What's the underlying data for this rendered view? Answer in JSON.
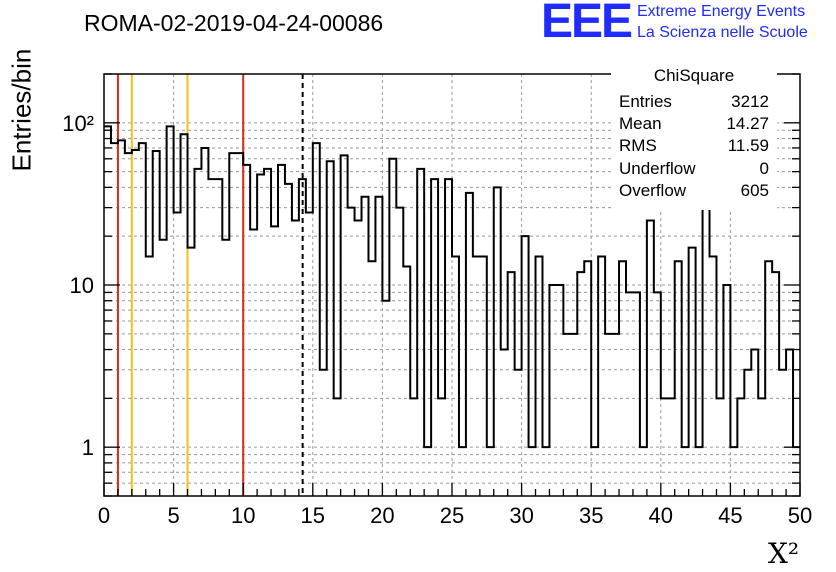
{
  "header": {
    "title": "ROMA-02-2019-04-24-00086",
    "logo_text": "EEE",
    "logo_line1": "Extreme Energy Events",
    "logo_line2": "La Scienza nelle Scuole",
    "logo_color": "#1f2bff"
  },
  "stats": {
    "title": "ChiSquare",
    "rows": [
      {
        "label": "Entries",
        "value": "3212"
      },
      {
        "label": "Mean",
        "value": "14.27"
      },
      {
        "label": "RMS",
        "value": "11.59"
      },
      {
        "label": "Underflow",
        "value": "0"
      },
      {
        "label": "Overflow",
        "value": "605"
      }
    ]
  },
  "chart_data": {
    "type": "bar",
    "style": "step-histogram",
    "xlabel": "X²",
    "ylabel": "Entries/bin",
    "xlim": [
      0,
      50
    ],
    "ylim": [
      0.5,
      200
    ],
    "log_y": true,
    "grid": true,
    "x_ticks": [
      0,
      5,
      10,
      15,
      20,
      25,
      30,
      35,
      40,
      45,
      50
    ],
    "y_ticks": [
      {
        "value": 1,
        "label": "1"
      },
      {
        "value": 10,
        "label": "10"
      },
      {
        "value": 100,
        "label": "10²"
      }
    ],
    "bin_width": 0.5,
    "values": [
      95,
      75,
      78,
      65,
      68,
      75,
      15,
      67,
      19,
      95,
      28,
      85,
      17,
      52,
      70,
      45,
      45,
      19,
      65,
      65,
      55,
      22,
      48,
      52,
      23,
      55,
      42,
      25,
      45,
      28,
      75,
      3,
      58,
      2,
      63,
      30,
      25,
      35,
      14,
      35,
      8,
      60,
      30,
      13,
      2,
      52,
      1,
      45,
      2,
      45,
      15,
      1,
      37,
      15,
      15,
      1,
      40,
      4,
      12,
      3,
      20,
      1,
      15,
      1,
      10,
      10,
      5,
      5,
      12,
      14,
      1,
      15,
      5,
      5,
      14,
      9,
      9,
      1,
      25,
      9,
      2,
      2,
      14,
      1,
      17,
      1,
      30,
      15,
      2,
      10,
      1,
      2,
      3,
      4,
      2,
      14,
      12,
      3,
      4,
      1
    ],
    "vlines": [
      {
        "x": 1,
        "color": "#e0261d",
        "style": "solid"
      },
      {
        "x": 2,
        "color": "#f2c21b",
        "style": "solid"
      },
      {
        "x": 6,
        "color": "#f2c21b",
        "style": "solid"
      },
      {
        "x": 10,
        "color": "#e0261d",
        "style": "solid"
      },
      {
        "x": 14.27,
        "color": "#000000",
        "style": "dashed"
      }
    ]
  }
}
